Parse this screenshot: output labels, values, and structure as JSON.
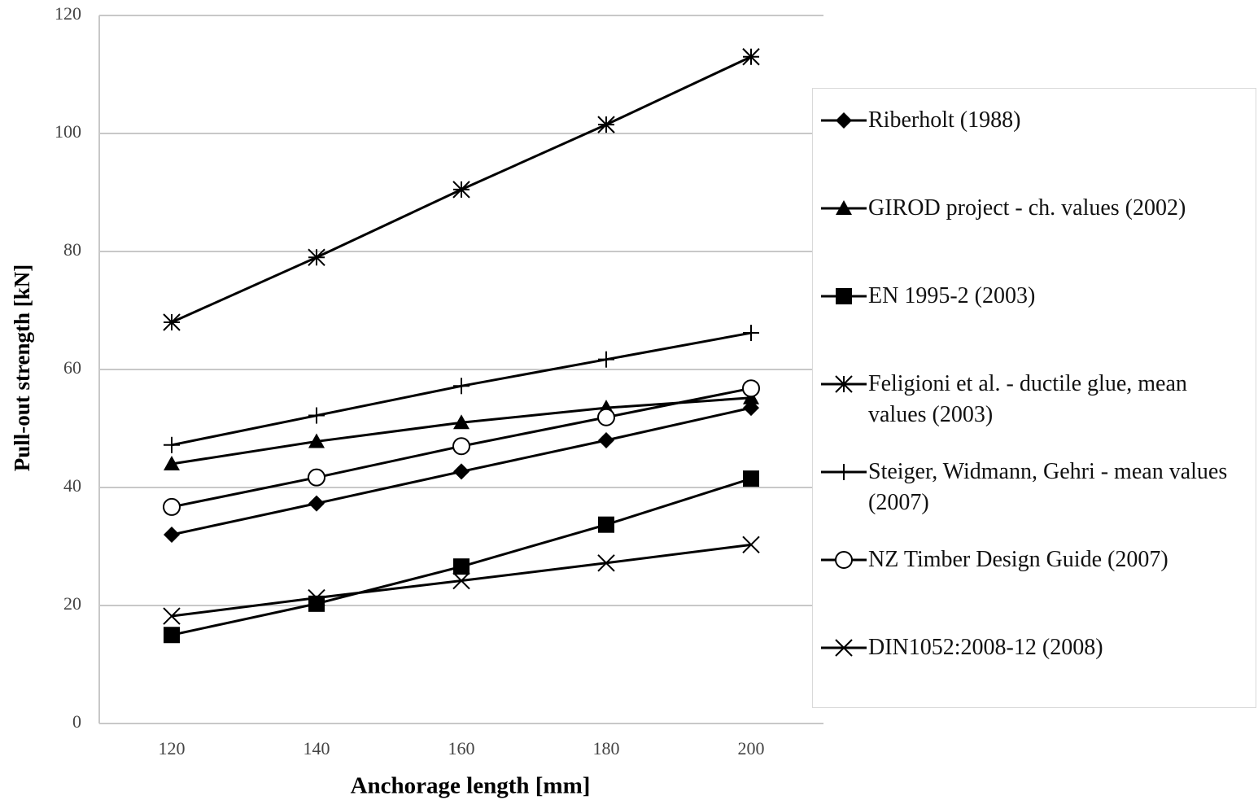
{
  "chart_data": {
    "type": "line",
    "x_label": "Anchorage length [mm]",
    "y_label": "Pull-out strength [kN]",
    "x": [
      120,
      140,
      160,
      180,
      200
    ],
    "xlim": [
      110,
      210
    ],
    "xticks": [
      120,
      140,
      160,
      180,
      200
    ],
    "ylim": [
      0,
      120
    ],
    "yticks": [
      0,
      20,
      40,
      60,
      80,
      100,
      120
    ],
    "grid": true,
    "legend": "right",
    "series": [
      {
        "name": "Riberholt (1988)",
        "color": "#000000",
        "marker": "diamond",
        "values": [
          32,
          37.3,
          42.7,
          48,
          53.5
        ]
      },
      {
        "name": "GIROD project - ch. values (2002)",
        "color": "#000000",
        "marker": "triangle",
        "values": [
          44,
          47.8,
          51,
          53.5,
          55.2
        ]
      },
      {
        "name": "EN 1995-2 (2003)",
        "color": "#000000",
        "marker": "square",
        "values": [
          15,
          20.3,
          26.6,
          33.7,
          41.5
        ]
      },
      {
        "name": "Feligioni et al. - ductile glue, mean values (2003)",
        "color": "#000000",
        "marker": "asterisk",
        "values": [
          68,
          79,
          90.5,
          101.5,
          113
        ]
      },
      {
        "name": "Steiger, Widmann, Gehri - mean values (2007)",
        "color": "#000000",
        "marker": "plus",
        "values": [
          47.2,
          52.2,
          57.2,
          61.7,
          66.2
        ]
      },
      {
        "name": "NZ Timber Design Guide (2007)",
        "color": "#000000",
        "marker": "circle",
        "values": [
          36.7,
          41.7,
          47,
          51.9,
          56.8
        ]
      },
      {
        "name": "DIN1052:2008-12 (2008)",
        "color": "#000000",
        "marker": "cross",
        "values": [
          18.2,
          21.3,
          24.2,
          27.2,
          30.3
        ]
      }
    ]
  }
}
